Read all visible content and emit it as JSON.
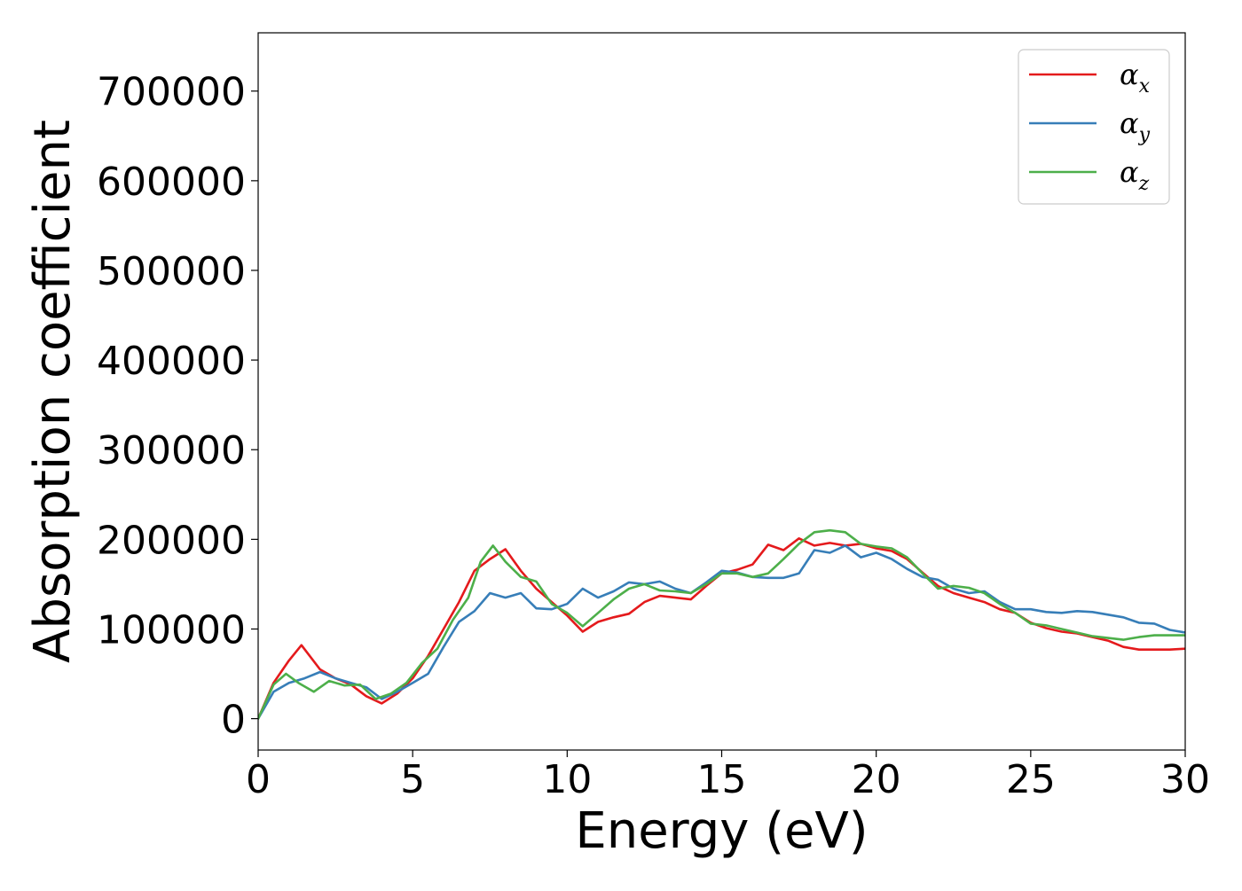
{
  "chart_data": {
    "type": "line",
    "title": "",
    "xlabel": "Energy (eV)",
    "ylabel": "Absorption coefficient",
    "xlim": [
      0,
      30
    ],
    "ylim": [
      -35000,
      765000
    ],
    "xticks": [
      0,
      5,
      10,
      15,
      20,
      25,
      30
    ],
    "yticks": [
      0,
      100000,
      200000,
      300000,
      400000,
      500000,
      600000,
      700000
    ],
    "grid": false,
    "legend_position": "top-right",
    "series": [
      {
        "name": "αx",
        "legend_symbol": "α",
        "legend_subscript": "x",
        "color": "#e41a1c",
        "x": [
          0,
          0.5,
          1.0,
          1.4,
          2.0,
          2.5,
          3.0,
          3.5,
          4.0,
          4.5,
          5.0,
          5.5,
          6.0,
          6.5,
          7.0,
          7.5,
          8.0,
          8.5,
          9.0,
          9.5,
          10.0,
          10.5,
          11.0,
          11.5,
          12.0,
          12.5,
          13.0,
          13.5,
          14.0,
          14.5,
          15.0,
          15.5,
          16.0,
          16.5,
          17.0,
          17.5,
          18.0,
          18.5,
          19.0,
          19.5,
          20.0,
          20.5,
          21.0,
          21.5,
          22.0,
          22.5,
          23.0,
          23.5,
          24.0,
          24.5,
          25.0,
          25.5,
          26.0,
          26.5,
          27.0,
          27.5,
          28.0,
          28.5,
          29.0,
          29.5,
          30.0
        ],
        "values": [
          0,
          40000,
          65000,
          82000,
          55000,
          45000,
          38000,
          25000,
          17000,
          28000,
          45000,
          70000,
          100000,
          130000,
          165000,
          178000,
          189000,
          165000,
          145000,
          130000,
          115000,
          97000,
          108000,
          113000,
          117000,
          130000,
          137000,
          135000,
          133000,
          148000,
          162000,
          166000,
          172000,
          194000,
          188000,
          201000,
          193000,
          196000,
          193000,
          195000,
          190000,
          187000,
          178000,
          163000,
          148000,
          140000,
          135000,
          130000,
          122000,
          118000,
          107000,
          101000,
          97000,
          95000,
          91000,
          87000,
          80000,
          77000,
          77000,
          77000,
          78000
        ]
      },
      {
        "name": "αy",
        "legend_symbol": "α",
        "legend_subscript": "y",
        "color": "#377eb8",
        "x": [
          0,
          0.5,
          1.0,
          1.5,
          2.0,
          2.5,
          3.0,
          3.5,
          4.0,
          4.5,
          5.0,
          5.5,
          6.0,
          6.5,
          7.0,
          7.5,
          8.0,
          8.5,
          9.0,
          9.5,
          10.0,
          10.5,
          11.0,
          11.5,
          12.0,
          12.5,
          13.0,
          13.5,
          14.0,
          14.5,
          15.0,
          15.5,
          16.0,
          16.5,
          17.0,
          17.5,
          18.0,
          18.5,
          19.0,
          19.5,
          20.0,
          20.5,
          21.0,
          21.5,
          22.0,
          22.5,
          23.0,
          23.5,
          24.0,
          24.5,
          25.0,
          25.5,
          26.0,
          26.5,
          27.0,
          27.5,
          28.0,
          28.5,
          29.0,
          29.5,
          30.0
        ],
        "values": [
          0,
          30000,
          40000,
          45000,
          52000,
          45000,
          40000,
          35000,
          22000,
          30000,
          40000,
          50000,
          80000,
          108000,
          120000,
          140000,
          135000,
          140000,
          123000,
          122000,
          128000,
          145000,
          135000,
          142000,
          152000,
          150000,
          153000,
          145000,
          140000,
          152000,
          165000,
          163000,
          158000,
          157000,
          157000,
          162000,
          188000,
          185000,
          193000,
          180000,
          185000,
          178000,
          167000,
          158000,
          155000,
          145000,
          140000,
          142000,
          130000,
          122000,
          122000,
          119000,
          118000,
          120000,
          119000,
          116000,
          113000,
          107000,
          106000,
          99000,
          96000
        ]
      },
      {
        "name": "αz",
        "legend_symbol": "α",
        "legend_subscript": "z",
        "color": "#4daf4a",
        "x": [
          0,
          0.5,
          0.9,
          1.3,
          1.8,
          2.3,
          2.8,
          3.3,
          3.8,
          4.3,
          4.8,
          5.3,
          5.8,
          6.3,
          6.8,
          7.2,
          7.6,
          8.0,
          8.5,
          9.0,
          9.5,
          10.0,
          10.5,
          11.0,
          11.5,
          12.0,
          12.5,
          13.0,
          13.5,
          14.0,
          14.5,
          15.0,
          15.5,
          16.0,
          16.5,
          17.0,
          17.5,
          18.0,
          18.5,
          19.0,
          19.5,
          20.0,
          20.5,
          21.0,
          21.5,
          22.0,
          22.5,
          23.0,
          23.5,
          24.0,
          24.5,
          25.0,
          25.5,
          26.0,
          26.5,
          27.0,
          27.5,
          28.0,
          28.5,
          29.0,
          29.5,
          30.0
        ],
        "values": [
          0,
          38000,
          50000,
          40000,
          30000,
          42000,
          37000,
          38000,
          22000,
          28000,
          40000,
          62000,
          78000,
          110000,
          135000,
          175000,
          193000,
          175000,
          158000,
          153000,
          128000,
          118000,
          103000,
          118000,
          133000,
          145000,
          150000,
          143000,
          142000,
          140000,
          150000,
          162000,
          162000,
          158000,
          162000,
          178000,
          195000,
          208000,
          210000,
          208000,
          195000,
          192000,
          190000,
          180000,
          162000,
          145000,
          148000,
          146000,
          140000,
          128000,
          118000,
          106000,
          104000,
          100000,
          96000,
          92000,
          90000,
          88000,
          91000,
          93000,
          93000,
          93000
        ]
      }
    ]
  }
}
